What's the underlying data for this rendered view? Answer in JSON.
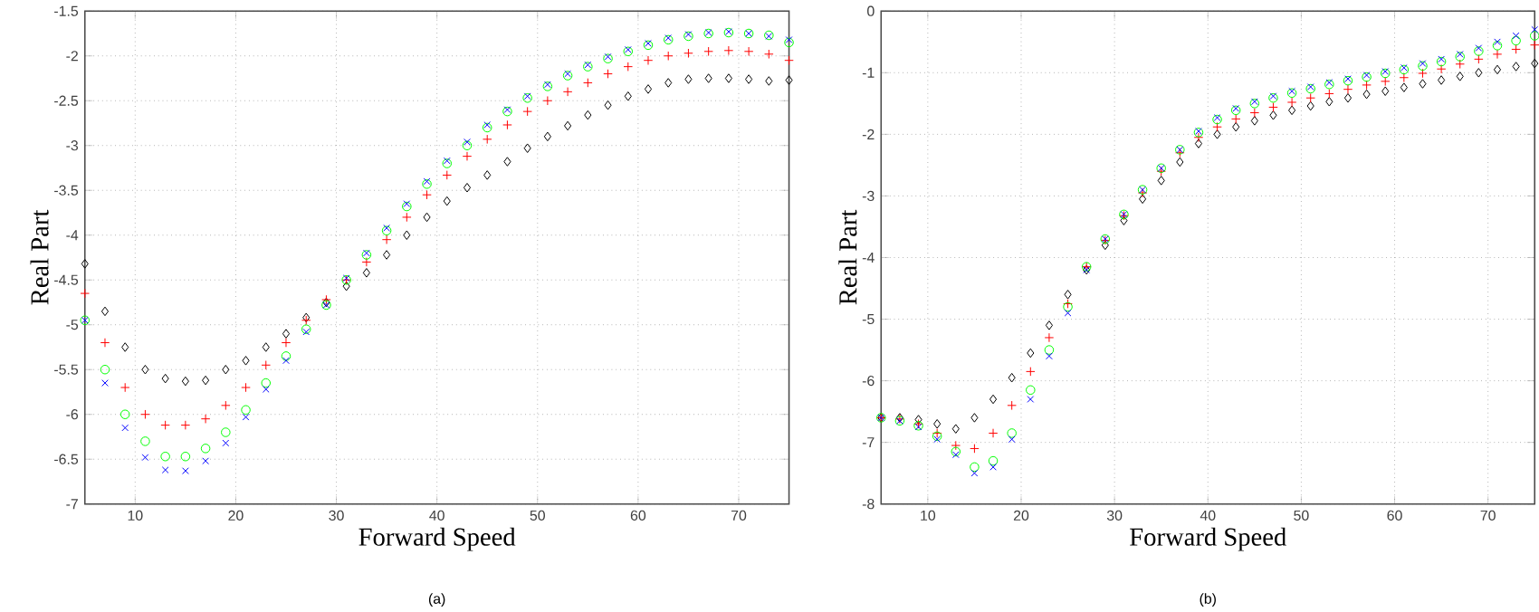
{
  "chart_data": [
    {
      "type": "scatter",
      "title": "(a)",
      "xlabel": "Forward Speed",
      "ylabel": "Real Part",
      "grid": true,
      "xlim": [
        5,
        75
      ],
      "ylim": [
        -7,
        -1.5
      ],
      "xticks": [
        10,
        20,
        30,
        40,
        50,
        60,
        70
      ],
      "yticks": [
        -7,
        -6.5,
        -6,
        -5.5,
        -5,
        -4.5,
        -4,
        -3.5,
        -3,
        -2.5,
        -2,
        -1.5
      ],
      "x": [
        5,
        7,
        9,
        11,
        13,
        15,
        17,
        19,
        21,
        23,
        25,
        27,
        29,
        31,
        33,
        35,
        37,
        39,
        41,
        43,
        45,
        47,
        49,
        51,
        53,
        55,
        57,
        59,
        61,
        63,
        65,
        67,
        69,
        71,
        73,
        75
      ],
      "series": [
        {
          "color": "#000000",
          "marker": "diamond",
          "values": [
            -4.32,
            -4.85,
            -5.25,
            -5.5,
            -5.6,
            -5.63,
            -5.62,
            -5.5,
            -5.4,
            -5.25,
            -5.1,
            -4.92,
            -4.75,
            -4.57,
            -4.42,
            -4.22,
            -4.0,
            -3.8,
            -3.62,
            -3.47,
            -3.33,
            -3.18,
            -3.03,
            -2.9,
            -2.78,
            -2.66,
            -2.55,
            -2.45,
            -2.37,
            -2.3,
            -2.26,
            -2.25,
            -2.25,
            -2.26,
            -2.28,
            -2.27
          ]
        },
        {
          "color": "#ff0000",
          "marker": "cross",
          "values": [
            -4.65,
            -5.2,
            -5.7,
            -6.0,
            -6.12,
            -6.12,
            -6.05,
            -5.9,
            -5.7,
            -5.45,
            -5.2,
            -4.95,
            -4.72,
            -4.5,
            -4.3,
            -4.05,
            -3.8,
            -3.55,
            -3.33,
            -3.12,
            -2.93,
            -2.77,
            -2.62,
            -2.5,
            -2.4,
            -2.3,
            -2.2,
            -2.12,
            -2.05,
            -2.0,
            -1.97,
            -1.95,
            -1.94,
            -1.95,
            -1.98,
            -2.05
          ]
        },
        {
          "color": "#00ff00",
          "marker": "circle",
          "values": [
            -4.95,
            -5.5,
            -6.0,
            -6.3,
            -6.47,
            -6.47,
            -6.38,
            -6.2,
            -5.95,
            -5.65,
            -5.35,
            -5.05,
            -4.78,
            -4.5,
            -4.22,
            -3.95,
            -3.68,
            -3.43,
            -3.2,
            -3.0,
            -2.8,
            -2.62,
            -2.47,
            -2.34,
            -2.22,
            -2.12,
            -2.03,
            -1.95,
            -1.88,
            -1.82,
            -1.78,
            -1.75,
            -1.74,
            -1.75,
            -1.77,
            -1.85
          ]
        },
        {
          "color": "#0000ff",
          "marker": "cross",
          "values": [
            -4.95,
            -5.65,
            -6.15,
            -6.48,
            -6.62,
            -6.63,
            -6.52,
            -6.32,
            -6.03,
            -5.72,
            -5.4,
            -5.08,
            -4.78,
            -4.48,
            -4.2,
            -3.92,
            -3.65,
            -3.4,
            -3.17,
            -2.96,
            -2.77,
            -2.6,
            -2.45,
            -2.32,
            -2.2,
            -2.1,
            -2.01,
            -1.93,
            -1.86,
            -1.8,
            -1.76,
            -1.74,
            -1.73,
            -1.75,
            -1.78,
            -1.82
          ]
        }
      ]
    },
    {
      "type": "scatter",
      "title": "(b)",
      "xlabel": "Forward Speed",
      "ylabel": "Real Part",
      "grid": true,
      "xlim": [
        5,
        75
      ],
      "ylim": [
        -8,
        0
      ],
      "xticks": [
        10,
        20,
        30,
        40,
        50,
        60,
        70
      ],
      "yticks": [
        -8,
        -7,
        -6,
        -5,
        -4,
        -3,
        -2,
        -1,
        0
      ],
      "x": [
        5,
        7,
        9,
        11,
        13,
        15,
        17,
        19,
        21,
        23,
        25,
        27,
        29,
        31,
        33,
        35,
        37,
        39,
        41,
        43,
        45,
        47,
        49,
        51,
        53,
        55,
        57,
        59,
        61,
        63,
        65,
        67,
        69,
        71,
        73,
        75
      ],
      "series": [
        {
          "color": "#000000",
          "marker": "diamond",
          "values": [
            -6.6,
            -6.6,
            -6.63,
            -6.7,
            -6.78,
            -6.6,
            -6.3,
            -5.95,
            -5.55,
            -5.1,
            -4.6,
            -4.2,
            -3.8,
            -3.4,
            -3.05,
            -2.75,
            -2.45,
            -2.15,
            -2.0,
            -1.88,
            -1.78,
            -1.69,
            -1.61,
            -1.54,
            -1.47,
            -1.41,
            -1.35,
            -1.3,
            -1.24,
            -1.18,
            -1.12,
            -1.06,
            -1.0,
            -0.95,
            -0.9,
            -0.85
          ]
        },
        {
          "color": "#ff0000",
          "marker": "cross",
          "values": [
            -6.6,
            -6.62,
            -6.7,
            -6.85,
            -7.05,
            -7.1,
            -6.85,
            -6.4,
            -5.85,
            -5.3,
            -4.75,
            -4.15,
            -3.72,
            -3.32,
            -2.95,
            -2.6,
            -2.3,
            -2.05,
            -1.88,
            -1.75,
            -1.65,
            -1.56,
            -1.48,
            -1.41,
            -1.34,
            -1.27,
            -1.2,
            -1.14,
            -1.08,
            -1.01,
            -0.94,
            -0.86,
            -0.78,
            -0.7,
            -0.62,
            -0.55
          ]
        },
        {
          "color": "#00ff00",
          "marker": "circle",
          "values": [
            -6.6,
            -6.65,
            -6.73,
            -6.9,
            -7.15,
            -7.4,
            -7.3,
            -6.85,
            -6.15,
            -5.5,
            -4.8,
            -4.15,
            -3.7,
            -3.3,
            -2.9,
            -2.55,
            -2.25,
            -1.97,
            -1.76,
            -1.61,
            -1.5,
            -1.41,
            -1.33,
            -1.26,
            -1.19,
            -1.13,
            -1.07,
            -1.01,
            -0.95,
            -0.89,
            -0.82,
            -0.74,
            -0.65,
            -0.56,
            -0.48,
            -0.4
          ]
        },
        {
          "color": "#0000ff",
          "marker": "cross",
          "values": [
            -6.6,
            -6.65,
            -6.75,
            -6.95,
            -7.2,
            -7.5,
            -7.4,
            -6.95,
            -6.3,
            -5.6,
            -4.9,
            -4.2,
            -3.7,
            -3.3,
            -2.9,
            -2.55,
            -2.25,
            -1.95,
            -1.73,
            -1.58,
            -1.47,
            -1.38,
            -1.3,
            -1.23,
            -1.16,
            -1.1,
            -1.04,
            -0.98,
            -0.92,
            -0.85,
            -0.78,
            -0.7,
            -0.6,
            -0.5,
            -0.4,
            -0.3
          ]
        }
      ]
    }
  ]
}
